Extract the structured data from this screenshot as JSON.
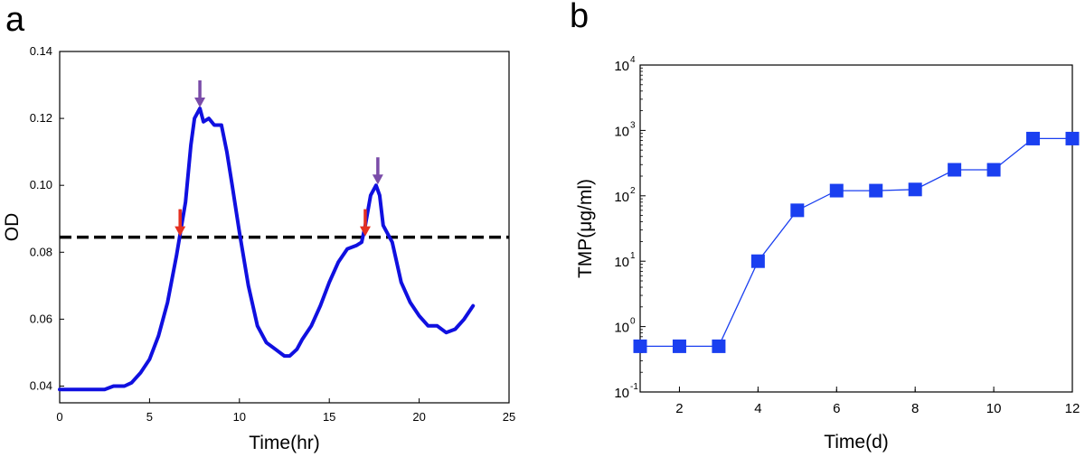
{
  "chart_data": [
    {
      "panel_label": "a",
      "type": "line",
      "xlabel": "Time(hr)",
      "ylabel": "OD",
      "xlim": [
        0,
        25
      ],
      "ylim": [
        0.035,
        0.14
      ],
      "xticks": [
        0,
        5,
        10,
        15,
        20,
        25
      ],
      "yticks": [
        0.04,
        0.06,
        0.08,
        0.1,
        0.12,
        0.14
      ],
      "ytick_labels": [
        "0.04",
        "0.06",
        "0.08",
        "0.10",
        "0.12",
        "0.14"
      ],
      "grid": false,
      "series": [
        {
          "name": "OD",
          "color": "#1010e0",
          "x": [
            0,
            1,
            2,
            2.5,
            3,
            3.3,
            3.6,
            4,
            4.5,
            5,
            5.5,
            6,
            6.5,
            7,
            7.3,
            7.5,
            7.8,
            8,
            8.3,
            8.6,
            9,
            9.3,
            9.6,
            10,
            10.5,
            11,
            11.5,
            12,
            12.5,
            12.8,
            13.2,
            13.5,
            14,
            14.5,
            15,
            15.5,
            16,
            16.5,
            16.8,
            17,
            17.3,
            17.6,
            17.8,
            18,
            18.5,
            19,
            19.5,
            20,
            20.5,
            21,
            21.5,
            22,
            22.5,
            23
          ],
          "y": [
            0.039,
            0.039,
            0.039,
            0.039,
            0.04,
            0.04,
            0.04,
            0.041,
            0.044,
            0.048,
            0.055,
            0.065,
            0.079,
            0.095,
            0.112,
            0.12,
            0.123,
            0.119,
            0.12,
            0.118,
            0.118,
            0.11,
            0.1,
            0.086,
            0.07,
            0.058,
            0.053,
            0.051,
            0.049,
            0.049,
            0.051,
            0.054,
            0.058,
            0.064,
            0.071,
            0.077,
            0.081,
            0.082,
            0.083,
            0.088,
            0.097,
            0.1,
            0.097,
            0.088,
            0.083,
            0.071,
            0.065,
            0.061,
            0.058,
            0.058,
            0.056,
            0.057,
            0.06,
            0.064
          ]
        }
      ],
      "reference_line": {
        "y": 0.0845,
        "style": "dashed",
        "color": "#000000"
      },
      "annotations": [
        {
          "type": "arrow",
          "color": "#e53020",
          "x": 6.7,
          "y": 0.0845,
          "direction": "down"
        },
        {
          "type": "arrow",
          "color": "#e53020",
          "x": 17.0,
          "y": 0.0845,
          "direction": "down"
        },
        {
          "type": "arrow",
          "color": "#7a4ca8",
          "x": 7.8,
          "y": 0.123,
          "direction": "down"
        },
        {
          "type": "arrow",
          "color": "#7a4ca8",
          "x": 17.7,
          "y": 0.1,
          "direction": "down"
        }
      ]
    },
    {
      "panel_label": "b",
      "type": "line",
      "yscale": "log",
      "xlabel": "Time(d)",
      "ylabel": "TMP(μg/ml)",
      "xlim": [
        1,
        12
      ],
      "ylim": [
        0.1,
        10000
      ],
      "xticks": [
        2,
        4,
        6,
        8,
        10,
        12
      ],
      "ytick_exponents": [
        -1,
        0,
        1,
        2,
        3,
        4
      ],
      "grid": false,
      "marker": "square",
      "series": [
        {
          "name": "TMP",
          "color": "#1a3ff0",
          "x": [
            1,
            2,
            3,
            4,
            5,
            6,
            7,
            8,
            9,
            10,
            11,
            12
          ],
          "y": [
            0.5,
            0.5,
            0.5,
            10,
            60,
            120,
            120,
            125,
            250,
            250,
            750,
            750
          ]
        }
      ]
    }
  ]
}
